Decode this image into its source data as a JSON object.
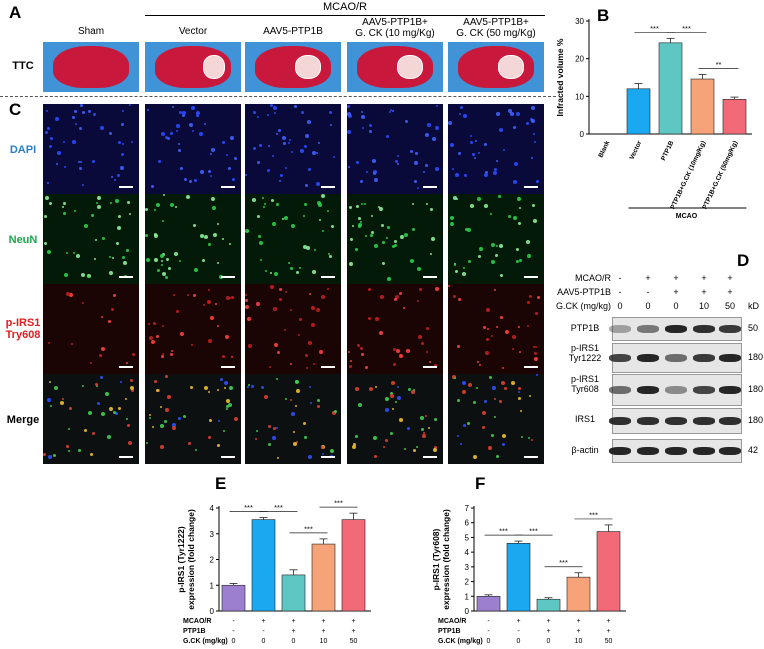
{
  "panel_letters": {
    "A": "A",
    "B": "B",
    "C": "C",
    "D": "D",
    "E": "E",
    "F": "F"
  },
  "panel_a": {
    "group_header": "MCAO/R",
    "row_label": "TTC",
    "columns": [
      "Sham",
      "Vector",
      "AAV5-PTP1B",
      "AAV5-PTP1B+\nG. CK (10 mg/Kg)",
      "AAV5-PTP1B+\nG. CK (50 mg/Kg)"
    ]
  },
  "panel_c": {
    "rows": [
      {
        "label": "DAPI",
        "color": "#2a7fc6"
      },
      {
        "label": "NeuN",
        "color": "#1aa84a"
      },
      {
        "label": "p-IRS1\nTry608",
        "color": "#e02020"
      },
      {
        "label": "Merge",
        "color": "#000000"
      }
    ]
  },
  "panel_d": {
    "header_rows": [
      {
        "label": "MCAO/R",
        "values": [
          "-",
          "+",
          "+",
          "+",
          "+"
        ]
      },
      {
        "label": "AAV5-PTP1B",
        "values": [
          "-",
          "-",
          "+",
          "+",
          "+"
        ]
      },
      {
        "label": "G.CK (mg/kg)",
        "values": [
          "0",
          "0",
          "0",
          "10",
          "50"
        ]
      }
    ],
    "kd_label": "kD",
    "blots": [
      {
        "label": "PTP1B",
        "kd": "50"
      },
      {
        "label": "p-IRS1\nTyr1222",
        "kd": "180"
      },
      {
        "label": "p-IRS1\nTyr608",
        "kd": "180"
      },
      {
        "label": "IRS1",
        "kd": "180"
      },
      {
        "label": "β-actin",
        "kd": "42"
      }
    ]
  },
  "chart_data": [
    {
      "panel": "B",
      "type": "bar",
      "ylabel": "Infracted volume %",
      "ylim": [
        0,
        30
      ],
      "yticks": [
        0,
        10,
        20,
        30
      ],
      "categories": [
        "Blank",
        "Vector",
        "PTP1B",
        "PTP1B+G.CK (10mg/Kg)",
        "PTP1B+G.CK (50mg/Kg)"
      ],
      "values": [
        0,
        12,
        24.2,
        14.6,
        9.2
      ],
      "errors": [
        0,
        1.4,
        1.2,
        1.2,
        0.6
      ],
      "colors": [
        "#ffffff",
        "#1aa9f0",
        "#5fc7c3",
        "#f6a37a",
        "#f26a77"
      ],
      "group_label": "MCAO",
      "significance": [
        {
          "from": 1,
          "to": 2,
          "text": "***"
        },
        {
          "from": 2,
          "to": 3,
          "text": "***"
        },
        {
          "from": 3,
          "to": 4,
          "text": "**"
        }
      ]
    },
    {
      "panel": "E",
      "type": "bar",
      "ylabel": "p-IRS1 (Tyr1222)\nexpression (fold change)",
      "ylim": [
        0,
        4
      ],
      "yticks": [
        0,
        1,
        2,
        3,
        4
      ],
      "values": [
        1.0,
        3.55,
        1.4,
        2.6,
        3.55
      ],
      "errors": [
        0.07,
        0.08,
        0.2,
        0.2,
        0.25
      ],
      "colors": [
        "#9c80cf",
        "#1aa9f0",
        "#5fc7c3",
        "#f6a37a",
        "#f26a77"
      ],
      "significance": [
        {
          "from": 0,
          "to": 1,
          "text": "***"
        },
        {
          "from": 1,
          "to": 2,
          "text": "***"
        },
        {
          "from": 2,
          "to": 3,
          "text": "***"
        },
        {
          "from": 3,
          "to": 4,
          "text": "***"
        }
      ],
      "conditions": [
        {
          "label": "MCAO/R",
          "values": [
            "-",
            "+",
            "+",
            "+",
            "+"
          ]
        },
        {
          "label": "PTP1B",
          "values": [
            "-",
            "-",
            "+",
            "+",
            "+"
          ]
        },
        {
          "label": "G.CK (mg/kg)",
          "values": [
            "0",
            "0",
            "0",
            "10",
            "50"
          ]
        }
      ]
    },
    {
      "panel": "F",
      "type": "bar",
      "ylabel": "p-IRS1 (Tyr608)\nexpression (fold change)",
      "ylim": [
        0,
        7
      ],
      "yticks": [
        0,
        1,
        2,
        3,
        4,
        5,
        6,
        7
      ],
      "values": [
        1.0,
        4.6,
        0.8,
        2.3,
        5.4
      ],
      "errors": [
        0.1,
        0.15,
        0.1,
        0.3,
        0.45
      ],
      "colors": [
        "#9c80cf",
        "#1aa9f0",
        "#5fc7c3",
        "#f6a37a",
        "#f26a77"
      ],
      "significance": [
        {
          "from": 0,
          "to": 1,
          "text": "***"
        },
        {
          "from": 1,
          "to": 2,
          "text": "***"
        },
        {
          "from": 2,
          "to": 3,
          "text": "***"
        },
        {
          "from": 3,
          "to": 4,
          "text": "***"
        }
      ],
      "conditions": [
        {
          "label": "MCAO/R",
          "values": [
            "-",
            "+",
            "+",
            "+",
            "+"
          ]
        },
        {
          "label": "PTP1B",
          "values": [
            "-",
            "-",
            "+",
            "+",
            "+"
          ]
        },
        {
          "label": "G.CK (mg/kg)",
          "values": [
            "0",
            "0",
            "0",
            "10",
            "50"
          ]
        }
      ]
    }
  ]
}
